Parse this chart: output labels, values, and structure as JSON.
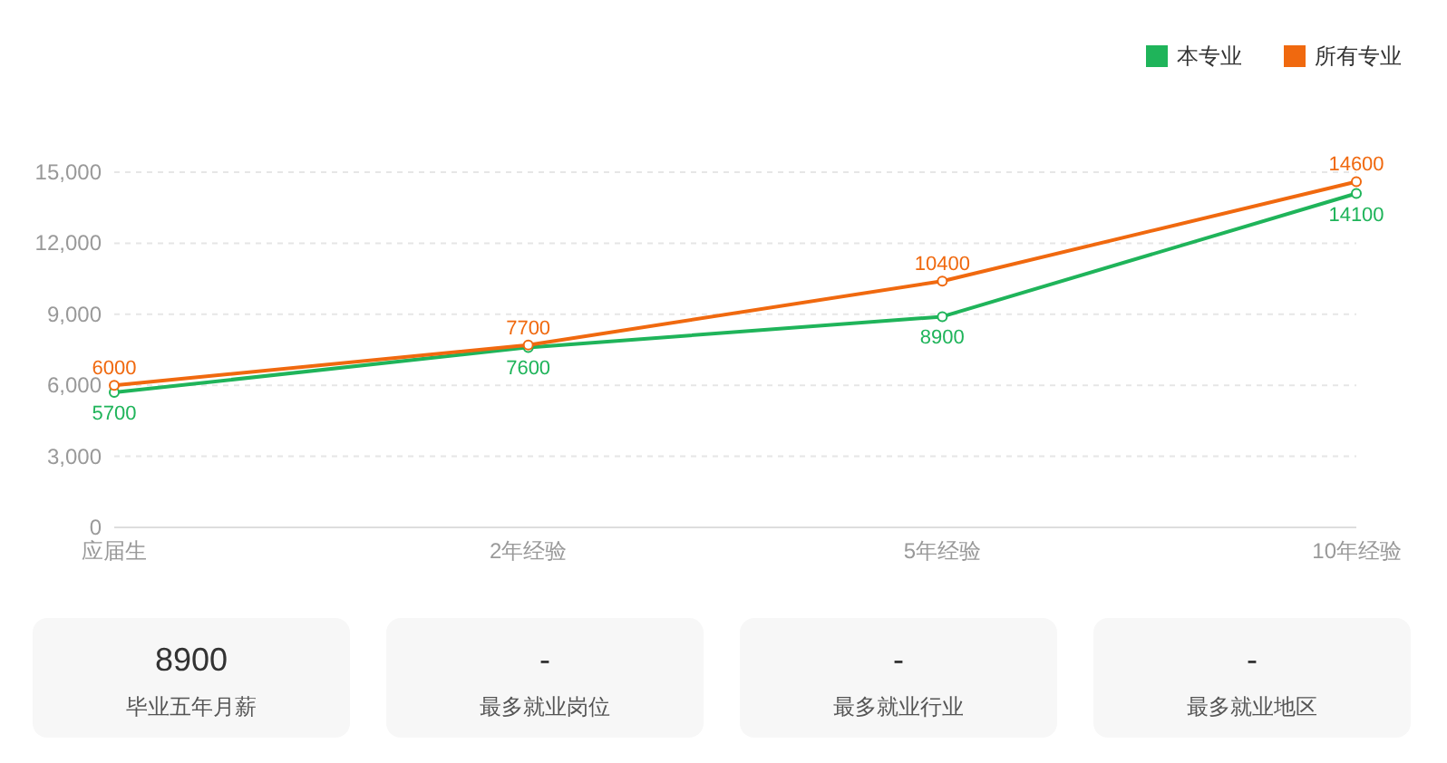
{
  "chart_data": [
    {
      "type": "line",
      "categories": [
        "应届生",
        "2年经验",
        "5年经验",
        "10年经验"
      ],
      "series": [
        {
          "name": "本专业",
          "color": "#1fb45a",
          "values": [
            5700,
            7600,
            8900,
            14100
          ]
        },
        {
          "name": "所有专业",
          "color": "#f0690f",
          "values": [
            6000,
            7700,
            10400,
            14600
          ]
        }
      ],
      "ylim": [
        0,
        15000
      ],
      "yticks": [
        {
          "value": 0,
          "label": "0"
        },
        {
          "value": 3000,
          "label": "3,000"
        },
        {
          "value": 6000,
          "label": "6,000"
        },
        {
          "value": 9000,
          "label": "9,000"
        },
        {
          "value": 12000,
          "label": "12,000"
        },
        {
          "value": 15000,
          "label": "15,000"
        }
      ],
      "grid": "y",
      "legend": "top right",
      "marker": "circle",
      "data_labels": true
    },
    {
      "type": "other",
      "categories": [
        "毕业五年月薪",
        "最多就业岗位",
        "最多就业行业",
        "最多就业地区"
      ],
      "value_labels": [
        "8900",
        "-",
        "-",
        "-"
      ]
    }
  ]
}
